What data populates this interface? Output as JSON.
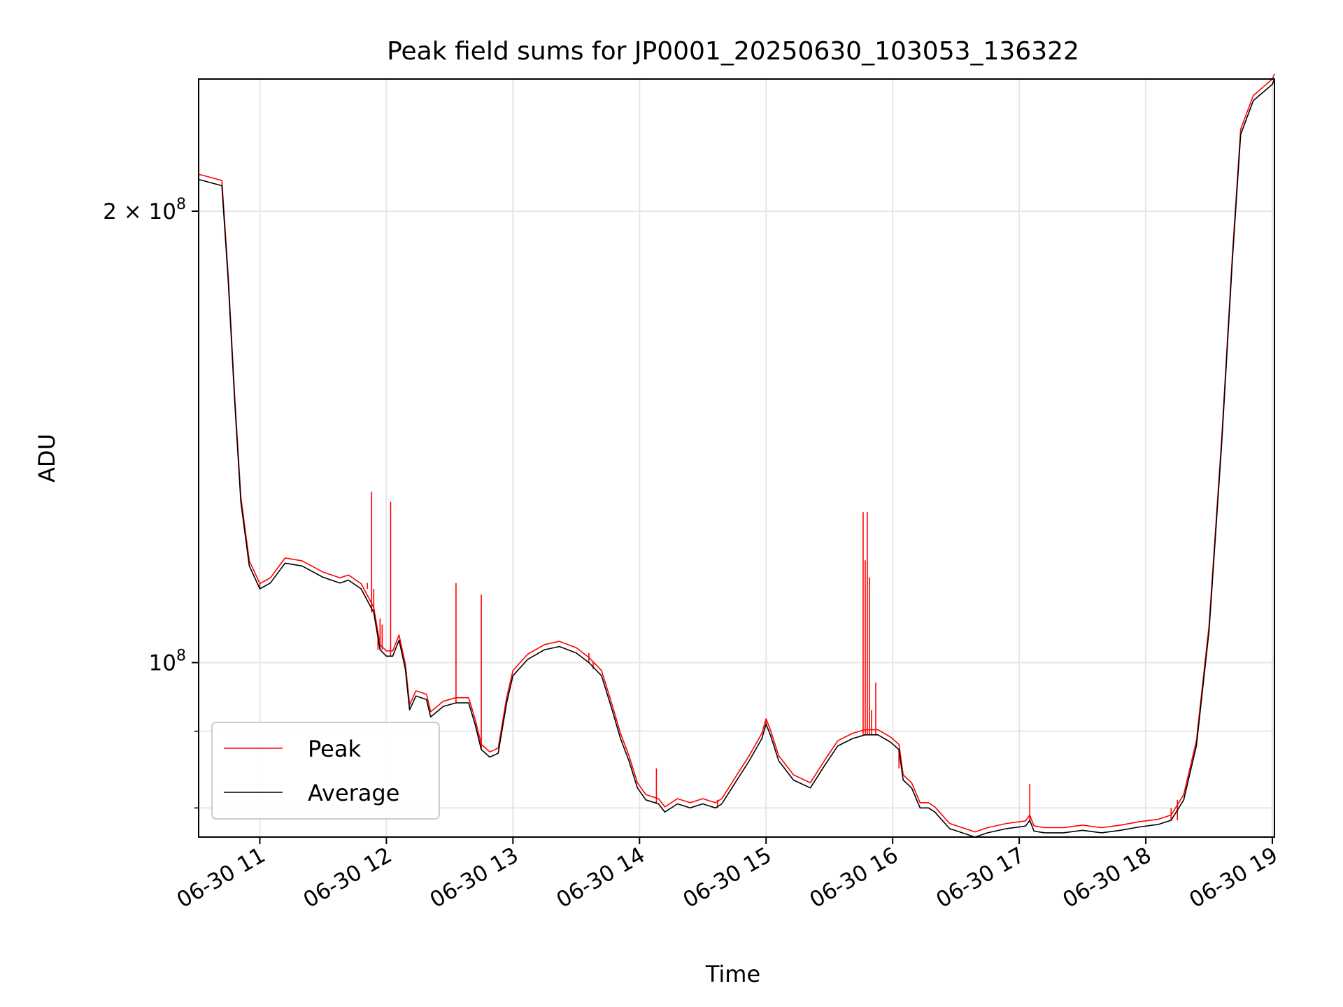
{
  "chart_data": {
    "type": "line",
    "title": "Peak field sums for JP0001_20250630_103053_136322",
    "xlabel": "Time",
    "ylabel": "ADU",
    "y_scale": "log",
    "grid": true,
    "legend_position": "lower-left",
    "x_range": [
      "2025-06-30 10:31",
      "2025-06-30 19:01"
    ],
    "y_range": [
      76500000.0,
      245000000.0
    ],
    "x_ticks": [
      {
        "t": "2025-06-30 11:00",
        "label": "06-30 11"
      },
      {
        "t": "2025-06-30 12:00",
        "label": "06-30 12"
      },
      {
        "t": "2025-06-30 13:00",
        "label": "06-30 13"
      },
      {
        "t": "2025-06-30 14:00",
        "label": "06-30 14"
      },
      {
        "t": "2025-06-30 15:00",
        "label": "06-30 15"
      },
      {
        "t": "2025-06-30 16:00",
        "label": "06-30 16"
      },
      {
        "t": "2025-06-30 17:00",
        "label": "06-30 17"
      },
      {
        "t": "2025-06-30 18:00",
        "label": "06-30 18"
      },
      {
        "t": "2025-06-30 19:00",
        "label": "06-30 19"
      }
    ],
    "y_ticks_major": [
      {
        "value": 200000000.0,
        "base": "2 × 10",
        "exp": "8"
      },
      {
        "value": 100000000.0,
        "base": "10",
        "exp": "8"
      }
    ],
    "y_ticks_minor": [
      80000000.0,
      90000000.0
    ],
    "series": [
      {
        "name": "Average",
        "color": "#000000",
        "points": [
          [
            "2025-06-30 10:31",
            210000000.0
          ],
          [
            "2025-06-30 10:42",
            208000000.0
          ],
          [
            "2025-06-30 10:45",
            180000000.0
          ],
          [
            "2025-06-30 10:48",
            150000000.0
          ],
          [
            "2025-06-30 10:51",
            128000000.0
          ],
          [
            "2025-06-30 10:55",
            116000000.0
          ],
          [
            "2025-06-30 11:00",
            112000000.0
          ],
          [
            "2025-06-30 11:05",
            113000000.0
          ],
          [
            "2025-06-30 11:12",
            116500000.0
          ],
          [
            "2025-06-30 11:20",
            116000000.0
          ],
          [
            "2025-06-30 11:30",
            114000000.0
          ],
          [
            "2025-06-30 11:38",
            113000000.0
          ],
          [
            "2025-06-30 11:42",
            113500000.0
          ],
          [
            "2025-06-30 11:48",
            112000000.0
          ],
          [
            "2025-06-30 11:54",
            108000000.0
          ],
          [
            "2025-06-30 11:57",
            102000000.0
          ],
          [
            "2025-06-30 12:00",
            101000000.0
          ],
          [
            "2025-06-30 12:03",
            101000000.0
          ],
          [
            "2025-06-30 12:06",
            103500000.0
          ],
          [
            "2025-06-30 12:09",
            99000000.0
          ],
          [
            "2025-06-30 12:11",
            93000000.0
          ],
          [
            "2025-06-30 12:14",
            95000000.0
          ],
          [
            "2025-06-30 12:19",
            94500000.0
          ],
          [
            "2025-06-30 12:21",
            92000000.0
          ],
          [
            "2025-06-30 12:27",
            93500000.0
          ],
          [
            "2025-06-30 12:33",
            94000000.0
          ],
          [
            "2025-06-30 12:39",
            94000000.0
          ],
          [
            "2025-06-30 12:42",
            91000000.0
          ],
          [
            "2025-06-30 12:45",
            87500000.0
          ],
          [
            "2025-06-30 12:49",
            86500000.0
          ],
          [
            "2025-06-30 12:53",
            87000000.0
          ],
          [
            "2025-06-30 12:57",
            94000000.0
          ],
          [
            "2025-06-30 13:00",
            98000000.0
          ],
          [
            "2025-06-30 13:07",
            100500000.0
          ],
          [
            "2025-06-30 13:15",
            102000000.0
          ],
          [
            "2025-06-30 13:22",
            102500000.0
          ],
          [
            "2025-06-30 13:30",
            101500000.0
          ],
          [
            "2025-06-30 13:36",
            100000000.0
          ],
          [
            "2025-06-30 13:42",
            98000000.0
          ],
          [
            "2025-06-30 13:47",
            93000000.0
          ],
          [
            "2025-06-30 13:51",
            89000000.0
          ],
          [
            "2025-06-30 13:55",
            86000000.0
          ],
          [
            "2025-06-30 13:59",
            82500000.0
          ],
          [
            "2025-06-30 14:03",
            81000000.0
          ],
          [
            "2025-06-30 14:09",
            80500000.0
          ],
          [
            "2025-06-30 14:12",
            79500000.0
          ],
          [
            "2025-06-30 14:18",
            80500000.0
          ],
          [
            "2025-06-30 14:24",
            80000000.0
          ],
          [
            "2025-06-30 14:30",
            80500000.0
          ],
          [
            "2025-06-30 14:36",
            80000000.0
          ],
          [
            "2025-06-30 14:39",
            80500000.0
          ],
          [
            "2025-06-30 14:45",
            83000000.0
          ],
          [
            "2025-06-30 14:52",
            86000000.0
          ],
          [
            "2025-06-30 14:58",
            89000000.0
          ],
          [
            "2025-06-30 15:00",
            91000000.0
          ],
          [
            "2025-06-30 15:02",
            89500000.0
          ],
          [
            "2025-06-30 15:06",
            86000000.0
          ],
          [
            "2025-06-30 15:13",
            83500000.0
          ],
          [
            "2025-06-30 15:21",
            82500000.0
          ],
          [
            "2025-06-30 15:28",
            85500000.0
          ],
          [
            "2025-06-30 15:34",
            88000000.0
          ],
          [
            "2025-06-30 15:41",
            89000000.0
          ],
          [
            "2025-06-30 15:47",
            89500000.0
          ],
          [
            "2025-06-30 15:53",
            89500000.0
          ],
          [
            "2025-06-30 15:59",
            88500000.0
          ],
          [
            "2025-06-30 16:03",
            87500000.0
          ],
          [
            "2025-06-30 16:05",
            83500000.0
          ],
          [
            "2025-06-30 16:09",
            82500000.0
          ],
          [
            "2025-06-30 16:13",
            80000000.0
          ],
          [
            "2025-06-30 16:17",
            80000000.0
          ],
          [
            "2025-06-30 16:20",
            79500000.0
          ],
          [
            "2025-06-30 16:27",
            77500000.0
          ],
          [
            "2025-06-30 16:33",
            77000000.0
          ],
          [
            "2025-06-30 16:39",
            76500000.0
          ],
          [
            "2025-06-30 16:45",
            77000000.0
          ],
          [
            "2025-06-30 16:54",
            77500000.0
          ],
          [
            "2025-06-30 17:03",
            77800000.0
          ],
          [
            "2025-06-30 17:05",
            78500000.0
          ],
          [
            "2025-06-30 17:07",
            77200000.0
          ],
          [
            "2025-06-30 17:12",
            77000000.0
          ],
          [
            "2025-06-30 17:21",
            77000000.0
          ],
          [
            "2025-06-30 17:30",
            77300000.0
          ],
          [
            "2025-06-30 17:39",
            77000000.0
          ],
          [
            "2025-06-30 17:48",
            77300000.0
          ],
          [
            "2025-06-30 17:57",
            77700000.0
          ],
          [
            "2025-06-30 18:06",
            78000000.0
          ],
          [
            "2025-06-30 18:12",
            78500000.0
          ],
          [
            "2025-06-30 18:18",
            81000000.0
          ],
          [
            "2025-06-30 18:24",
            88000000.0
          ],
          [
            "2025-06-30 18:30",
            105000000.0
          ],
          [
            "2025-06-30 18:36",
            140000000.0
          ],
          [
            "2025-06-30 18:41",
            185000000.0
          ],
          [
            "2025-06-30 18:45",
            225000000.0
          ],
          [
            "2025-06-30 18:51",
            237000000.0
          ],
          [
            "2025-06-30 19:00",
            243000000.0
          ],
          [
            "2025-06-30 19:01",
            245000000.0
          ]
        ]
      },
      {
        "name": "Peak",
        "color": "#ff0000",
        "spikes": [
          [
            "2025-06-30 11:00",
            113000000.0
          ],
          [
            "2025-06-30 11:51",
            113000000.0
          ],
          [
            "2025-06-30 11:53",
            130000000.0
          ],
          [
            "2025-06-30 11:54",
            112000000.0
          ],
          [
            "2025-06-30 11:56",
            105000000.0
          ],
          [
            "2025-06-30 11:57",
            107000000.0
          ],
          [
            "2025-06-30 11:58",
            106000000.0
          ],
          [
            "2025-06-30 12:02",
            128000000.0
          ],
          [
            "2025-06-30 12:33",
            113000000.0
          ],
          [
            "2025-06-30 12:45",
            111000000.0
          ],
          [
            "2025-06-30 13:36",
            101500000.0
          ],
          [
            "2025-06-30 13:38",
            99000000.0
          ],
          [
            "2025-06-30 14:08",
            85000000.0
          ],
          [
            "2025-06-30 14:37",
            81000000.0
          ],
          [
            "2025-06-30 15:00",
            91500000.0
          ],
          [
            "2025-06-30 15:46",
            126000000.0
          ],
          [
            "2025-06-30 15:47",
            117000000.0
          ],
          [
            "2025-06-30 15:48",
            126000000.0
          ],
          [
            "2025-06-30 15:49",
            114000000.0
          ],
          [
            "2025-06-30 15:50",
            93000000.0
          ],
          [
            "2025-06-30 15:52",
            97000000.0
          ],
          [
            "2025-06-30 16:03",
            85000000.0
          ],
          [
            "2025-06-30 16:05",
            83500000.0
          ],
          [
            "2025-06-30 17:05",
            83000000.0
          ],
          [
            "2025-06-30 18:12",
            80000000.0
          ],
          [
            "2025-06-30 18:15",
            81000000.0
          ]
        ]
      }
    ]
  }
}
